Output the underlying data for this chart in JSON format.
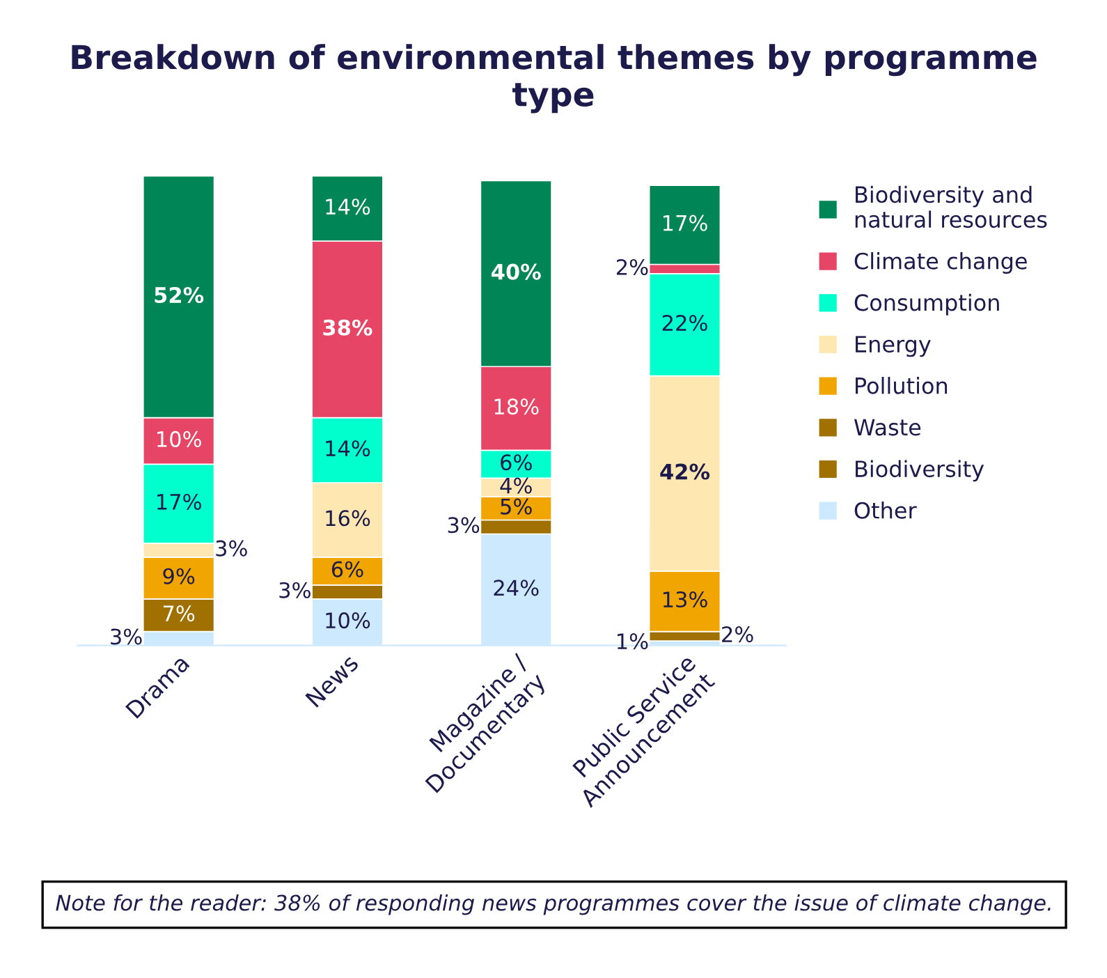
{
  "chart_data": {
    "type": "bar",
    "title": "Breakdown of environmental themes by programme type",
    "categories": [
      "Drama",
      "News",
      "Magazine /\nDocumentary",
      "Public Service\nAnnouncement"
    ],
    "stacked": true,
    "legend": "right",
    "grid": false,
    "series": [
      {
        "name": "Other",
        "color": "#cce9fe",
        "values": [
          3,
          10,
          24,
          1
        ],
        "value_labels": [
          "3%",
          "10%",
          "24%",
          "1%"
        ]
      },
      {
        "name": "Biodiversity",
        "color": "#a07000",
        "values": [
          null,
          null,
          null,
          null
        ],
        "value_labels": [
          null,
          null,
          null,
          null
        ]
      },
      {
        "name": "Waste",
        "color": "#a07000",
        "values": [
          7,
          3,
          3,
          2
        ],
        "value_labels": [
          "7%",
          "3%",
          "3%",
          "2%"
        ]
      },
      {
        "name": "Pollution",
        "color": "#f0a500",
        "values": [
          9,
          6,
          5,
          13
        ],
        "value_labels": [
          "9%",
          "6%",
          "5%",
          "13%"
        ]
      },
      {
        "name": "Energy",
        "color": "#fee7b1",
        "values": [
          3,
          16,
          4,
          42
        ],
        "value_labels": [
          "3%",
          "16%",
          "4%",
          "42%"
        ]
      },
      {
        "name": "Consumption",
        "color": "#00ffcc",
        "values": [
          17,
          14,
          6,
          22
        ],
        "value_labels": [
          "17%",
          "14%",
          "6%",
          "22%"
        ]
      },
      {
        "name": "Climate change",
        "color": "#e74565",
        "values": [
          10,
          38,
          18,
          2
        ],
        "value_labels": [
          "10%",
          "38%",
          "18%",
          "2%"
        ]
      },
      {
        "name": "Biodiversity and natural resources",
        "color": "#008656",
        "values": [
          52,
          14,
          40,
          17
        ],
        "value_labels": [
          "52%",
          "14%",
          "40%",
          "17%"
        ]
      }
    ],
    "annotations": [
      "Note for the reader: 38% of responding news programmes cover the issue of climate change."
    ]
  }
}
